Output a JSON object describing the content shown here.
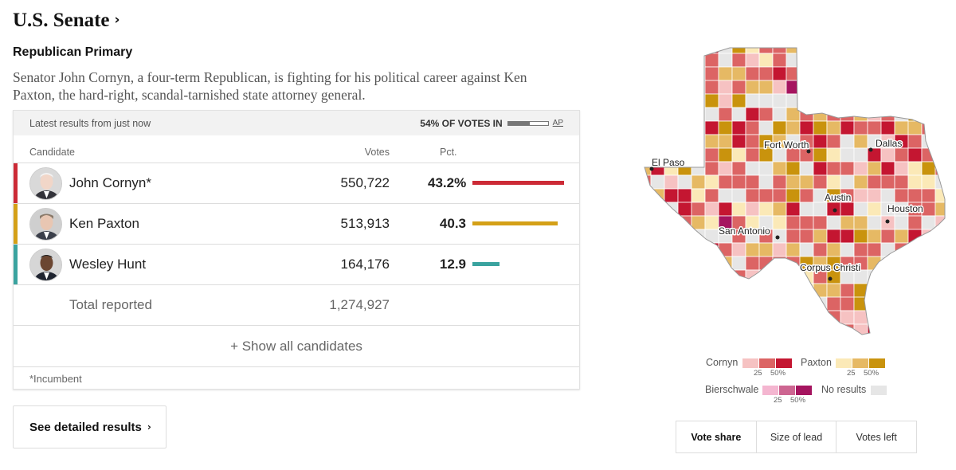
{
  "header": {
    "title": "U.S. Senate",
    "chevron": "›",
    "race": "Republican Primary",
    "description": "Senator John Cornyn, a four-term Republican, is fighting for his political career against Ken Paxton, the hard-right, scandal-tarnished state attorney general."
  },
  "results": {
    "latest": "Latest results from just now",
    "votes_in_label": "54% OF VOTES IN",
    "votes_in_pct": 54,
    "ap": "AP",
    "col_candidate": "Candidate",
    "col_votes": "Votes",
    "col_pct": "Pct.",
    "candidates": [
      {
        "name": "John Cornyn*",
        "votes": "550,722",
        "pct_label": "43.2%",
        "pct": 43.2,
        "color": "#cc2a36"
      },
      {
        "name": "Ken Paxton",
        "votes": "513,913",
        "pct_label": "40.3",
        "pct": 40.3,
        "color": "#d4a017"
      },
      {
        "name": "Wesley Hunt",
        "votes": "164,176",
        "pct_label": "12.9",
        "pct": 12.9,
        "color": "#3aa39f"
      }
    ],
    "total_label": "Total reported",
    "total_votes": "1,274,927",
    "show_all": "+ Show all candidates",
    "footnote": "*Incumbent"
  },
  "detail_button": {
    "label": "See detailed results",
    "chevron": "›"
  },
  "map": {
    "cities": [
      "El Paso",
      "Fort Worth",
      "Dallas",
      "Austin",
      "San Antonio",
      "Houston",
      "Corpus Christi"
    ],
    "colors": {
      "cornyn": [
        "#f6c2c2",
        "#dc6464",
        "#c41631"
      ],
      "paxton": [
        "#fbe9b7",
        "#e6b964",
        "#c9930d"
      ],
      "bierschwale": [
        "#f4b6d0",
        "#cd6591",
        "#a5145f"
      ],
      "no_results": "#e6e6e6"
    }
  },
  "legend": {
    "cornyn": "Cornyn",
    "paxton": "Paxton",
    "bierschwale": "Bierschwale",
    "no_results": "No results",
    "tick_25": "25",
    "tick_50": "50%"
  },
  "tabs": [
    "Vote share",
    "Size of lead",
    "Votes left"
  ]
}
